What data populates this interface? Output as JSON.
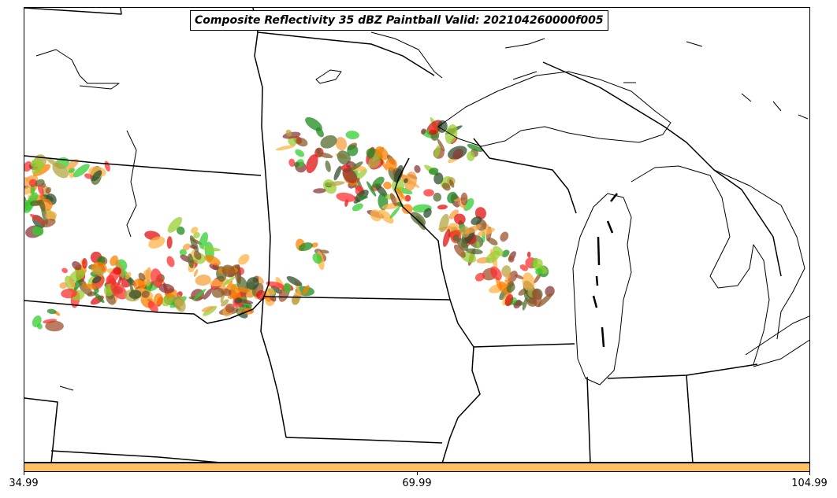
{
  "title": "Composite Reflectivity 35 dBZ Paintball Valid: 202104260000f005",
  "colorbar": {
    "color": "#fec062",
    "ticks": [
      "34.99",
      "69.99",
      "104.99"
    ]
  },
  "member_colors": [
    "#ff3030",
    "#e01010",
    "#ff7f00",
    "#f5a040",
    "#ffb347",
    "#32cd32",
    "#1e8b1e",
    "#556b2f",
    "#8b5a2b",
    "#a0522d",
    "#9acd32",
    "#b5a642",
    "#8b3a3a",
    "#2f4f2f"
  ]
}
